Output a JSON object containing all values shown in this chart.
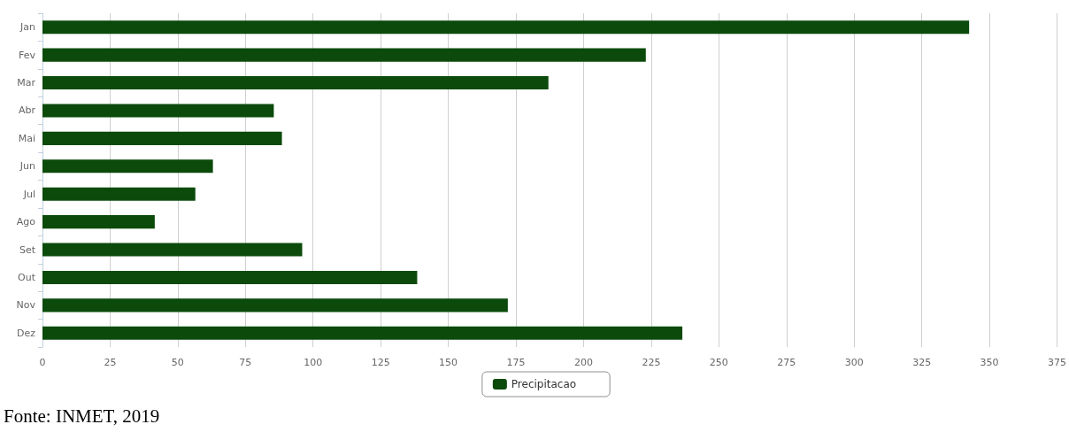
{
  "chart_data": {
    "type": "bar",
    "orientation": "horizontal",
    "categories": [
      "Jan",
      "Fev",
      "Mar",
      "Abr",
      "Mai",
      "Jun",
      "Jul",
      "Ago",
      "Set",
      "Out",
      "Nov",
      "Dez"
    ],
    "series": [
      {
        "name": "Precipitacao",
        "color": "#0b4a0b",
        "values": [
          342.5,
          223,
          187,
          85.5,
          88.5,
          63,
          56.5,
          41.5,
          96,
          138.5,
          172,
          236.5
        ]
      }
    ],
    "xlim": [
      0,
      375
    ],
    "xticks": [
      0,
      25,
      50,
      75,
      100,
      125,
      150,
      175,
      200,
      225,
      250,
      275,
      300,
      325,
      350,
      375
    ],
    "grid": "x",
    "legend": "bottom",
    "annotations": [
      "Fonte: INMET, 2019"
    ]
  }
}
